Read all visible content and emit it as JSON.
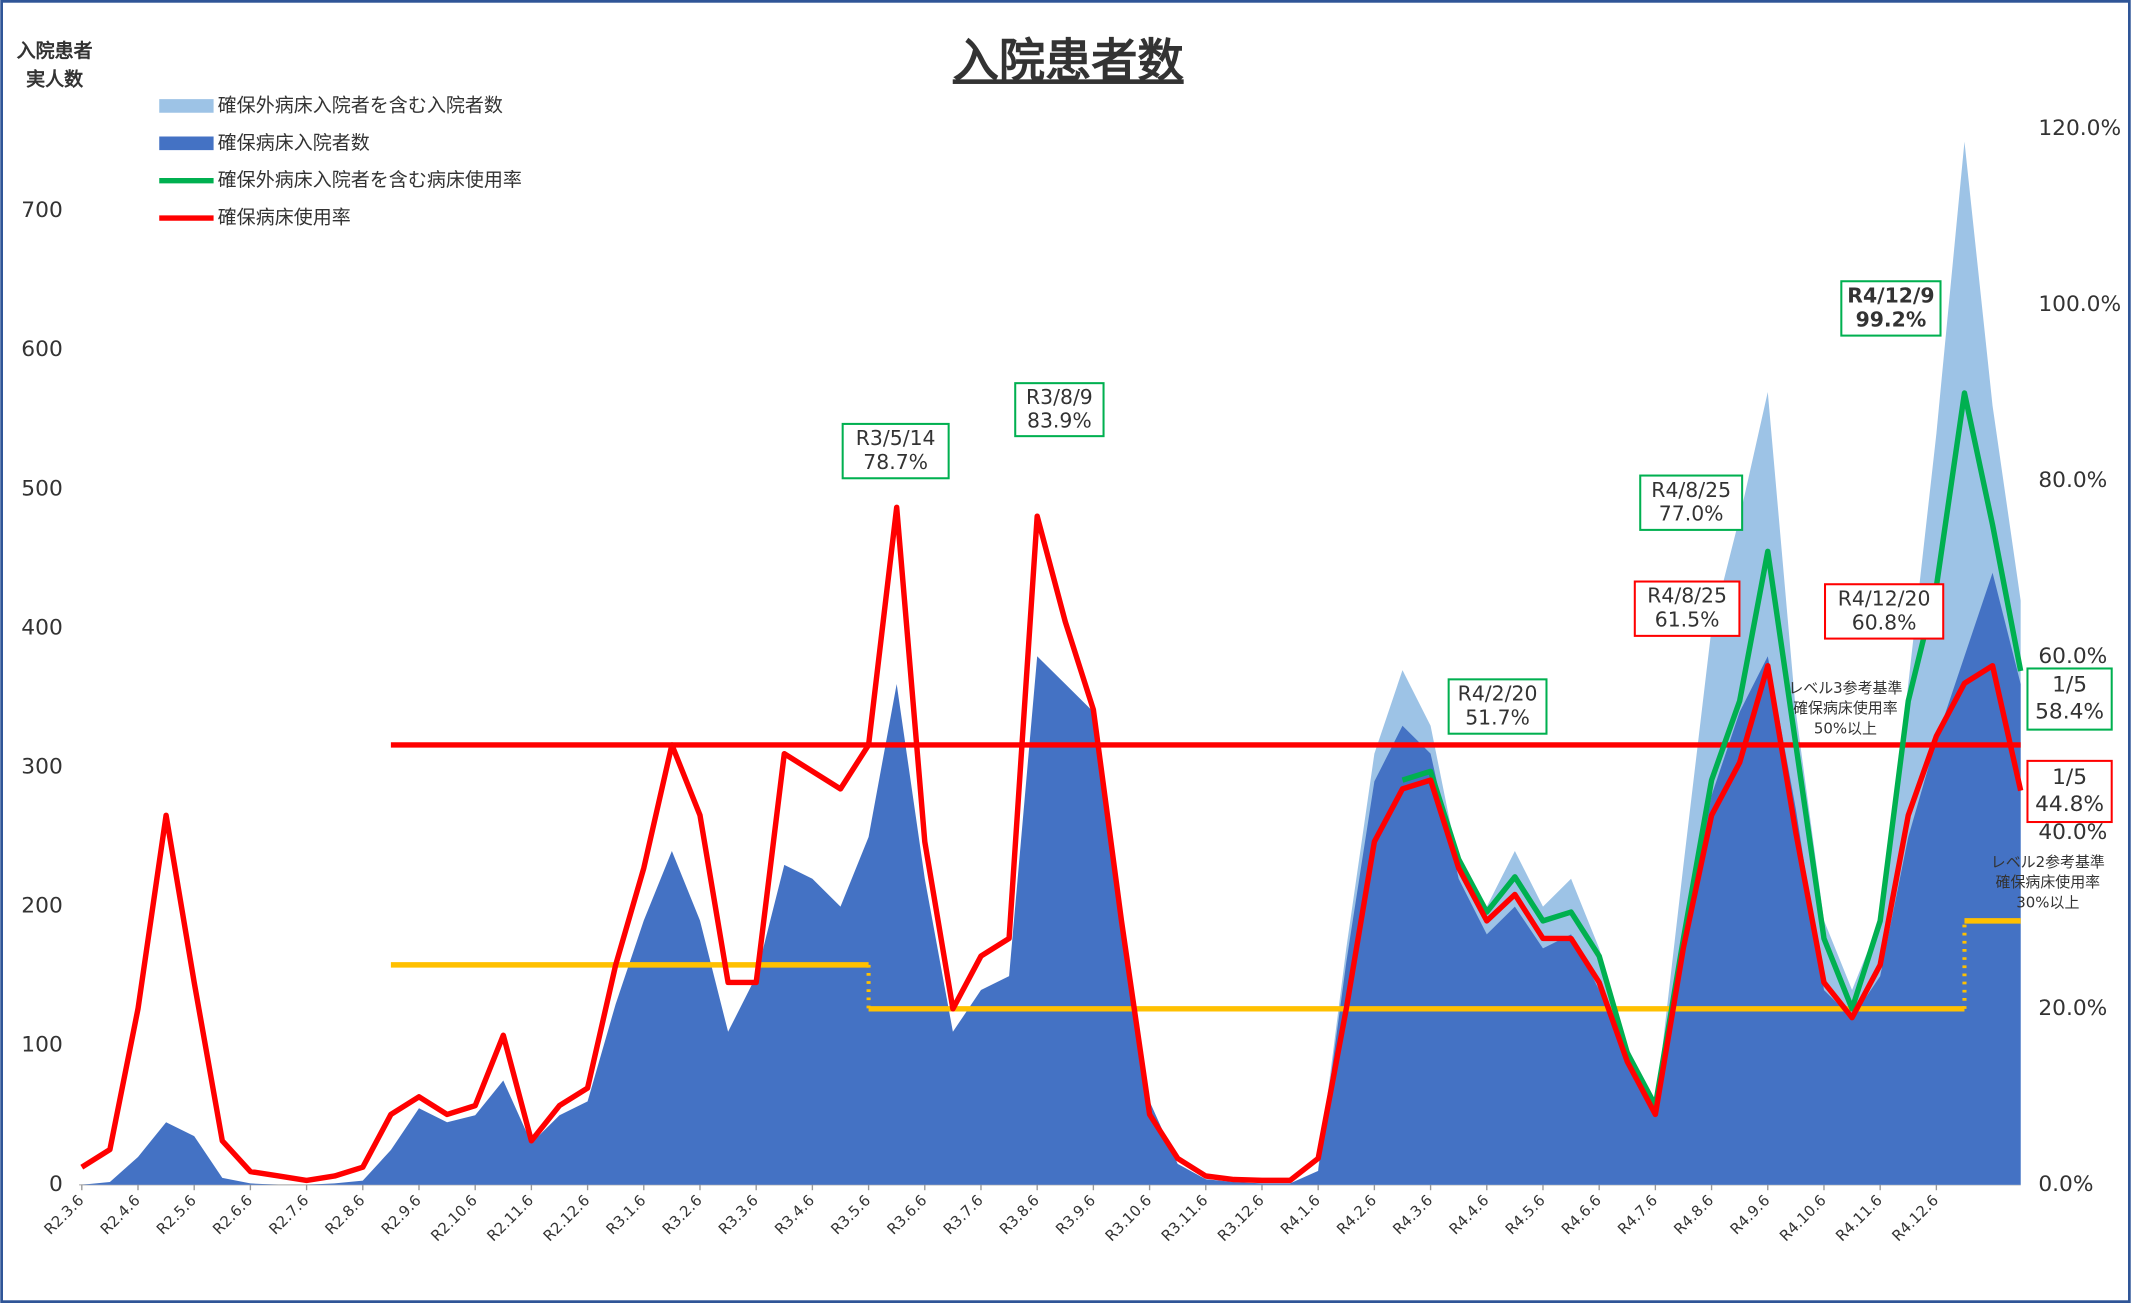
{
  "chart_data": {
    "type": "area-line",
    "title": "入院患者数",
    "y_axis_label": [
      "入院患者",
      "実人数"
    ],
    "categories": [
      "R2.3.6",
      null,
      "R2.4.6",
      null,
      "R2.5.6",
      null,
      "R2.6.6",
      null,
      "R2.7.6",
      null,
      "R2.8.6",
      null,
      "R2.9.6",
      null,
      "R2.10.6",
      null,
      "R2.11.6",
      null,
      "R2.12.6",
      null,
      "R3.1.6",
      null,
      "R3.2.6",
      null,
      "R3.3.6",
      null,
      "R3.4.6",
      null,
      "R3.5.6",
      null,
      "R3.6.6",
      null,
      "R3.7.6",
      null,
      "R3.8.6",
      null,
      "R3.9.6",
      null,
      "R3.10.6",
      null,
      "R3.11.6",
      null,
      "R3.12.6",
      null,
      "R4.1.6",
      null,
      "R4.2.6",
      null,
      "R4.3.6",
      null,
      "R4.4.6",
      null,
      "R4.5.6",
      null,
      "R4.6.6",
      null,
      "R4.7.6",
      null,
      "R4.8.6",
      null,
      "R4.9.6",
      null,
      "R4.10.6",
      null,
      "R4.11.6",
      null,
      "R4.12.6",
      null,
      null,
      null
    ],
    "ylim": [
      0,
      759
    ],
    "yticks": [
      0,
      100,
      200,
      300,
      400,
      500,
      600,
      700
    ],
    "y2lim": [
      0,
      120
    ],
    "y2ticks": [
      {
        "value": 0,
        "label": "0.0%"
      },
      {
        "value": 20,
        "label": "20.0%"
      },
      {
        "value": 40,
        "label": "40.0%"
      },
      {
        "value": 60,
        "label": "60.0%"
      },
      {
        "value": 80,
        "label": "80.0%"
      },
      {
        "value": 100,
        "label": "100.0%"
      },
      {
        "value": 120,
        "label": "120.0%"
      }
    ],
    "series": [
      {
        "name": "確保外病床入院者を含む入院者数",
        "kind": "area",
        "color": "#9dc3e6",
        "values": [
          null,
          null,
          null,
          null,
          null,
          null,
          null,
          null,
          null,
          null,
          null,
          null,
          null,
          null,
          null,
          null,
          null,
          null,
          null,
          null,
          null,
          null,
          null,
          null,
          null,
          null,
          null,
          null,
          null,
          null,
          null,
          null,
          null,
          null,
          null,
          null,
          null,
          null,
          null,
          null,
          null,
          null,
          null,
          null,
          12,
          170,
          310,
          370,
          330,
          230,
          200,
          240,
          200,
          220,
          170,
          100,
          55,
          230,
          400,
          480,
          570,
          340,
          190,
          140,
          190,
          360,
          540,
          750,
          560,
          420
        ]
      },
      {
        "name": "確保病床入院者数",
        "kind": "area",
        "color": "#4472c4",
        "values": [
          0,
          2,
          20,
          45,
          35,
          5,
          1,
          0,
          0,
          1,
          3,
          25,
          55,
          45,
          50,
          75,
          30,
          50,
          60,
          130,
          190,
          240,
          190,
          110,
          150,
          230,
          220,
          200,
          250,
          360,
          220,
          110,
          140,
          150,
          380,
          360,
          340,
          200,
          60,
          15,
          4,
          2,
          1,
          1,
          10,
          160,
          290,
          330,
          310,
          220,
          180,
          200,
          170,
          180,
          140,
          90,
          50,
          170,
          280,
          340,
          380,
          270,
          140,
          120,
          150,
          250,
          320,
          380,
          440,
          360
        ]
      },
      {
        "name": "確保外病床入院者を含む病床使用率",
        "kind": "line",
        "axis": "y2",
        "color": "#00b050",
        "values": [
          null,
          null,
          null,
          null,
          null,
          null,
          null,
          null,
          null,
          null,
          null,
          null,
          null,
          null,
          null,
          null,
          null,
          null,
          null,
          null,
          null,
          null,
          null,
          null,
          null,
          null,
          null,
          null,
          null,
          null,
          null,
          null,
          null,
          null,
          null,
          null,
          null,
          null,
          null,
          null,
          null,
          null,
          null,
          null,
          null,
          null,
          null,
          46,
          47,
          37,
          31,
          35,
          30,
          31,
          26,
          15,
          9,
          28,
          46,
          55,
          72,
          50,
          28,
          20,
          30,
          55,
          68,
          90,
          75,
          58.4
        ]
      },
      {
        "name": "確保病床使用率",
        "kind": "line",
        "axis": "y2",
        "color": "#ff0000",
        "values": [
          2,
          4,
          20,
          42,
          23,
          5,
          1.5,
          1,
          0.5,
          1,
          2,
          8,
          10,
          8,
          9,
          17,
          5,
          9,
          11,
          25,
          36,
          50,
          42,
          23,
          23,
          49,
          47,
          45,
          50,
          77,
          39,
          20,
          26,
          28,
          76,
          64,
          54,
          30,
          8,
          3,
          1,
          0.6,
          0.5,
          0.5,
          3,
          20,
          39,
          45,
          46,
          36,
          30,
          33,
          28,
          28,
          23,
          14,
          8,
          27,
          42,
          48,
          59,
          40,
          23,
          19,
          25,
          42,
          51,
          57,
          59,
          44.8
        ]
      }
    ],
    "reference_lines": [
      {
        "color": "#ff0000",
        "values": [
          null,
          null,
          null,
          null,
          null,
          null,
          null,
          null,
          null,
          null,
          null,
          50,
          50,
          50,
          50,
          50,
          50,
          50,
          50,
          50,
          50,
          50,
          50,
          50,
          50,
          50,
          50,
          50,
          50,
          50,
          50,
          50,
          50,
          50,
          50,
          50,
          50,
          50,
          50,
          50,
          50,
          50,
          50,
          50,
          50,
          50,
          50,
          50,
          50,
          50,
          50,
          50,
          50,
          50,
          50,
          50,
          50,
          50,
          50,
          50,
          50,
          50,
          50,
          50,
          50,
          50,
          50,
          50,
          50,
          50
        ]
      },
      {
        "color": "#ffc000",
        "values": [
          null,
          null,
          null,
          null,
          null,
          null,
          null,
          null,
          null,
          null,
          null,
          25,
          25,
          25,
          25,
          25,
          25,
          25,
          25,
          25,
          25,
          25,
          25,
          25,
          25,
          25,
          25,
          25,
          25,
          null,
          null,
          null,
          null,
          null,
          null,
          null,
          null,
          null,
          null,
          null,
          null,
          null,
          null,
          null,
          null,
          null,
          null,
          null,
          null,
          null,
          null,
          null,
          null,
          null,
          null,
          null,
          null,
          null,
          null,
          null,
          null,
          null,
          null,
          null,
          null,
          null,
          null,
          null,
          null,
          null
        ]
      },
      {
        "color": "#ffc000",
        "values": [
          null,
          null,
          null,
          null,
          null,
          null,
          null,
          null,
          null,
          null,
          null,
          null,
          null,
          null,
          null,
          null,
          null,
          null,
          null,
          null,
          null,
          null,
          null,
          null,
          null,
          null,
          null,
          null,
          20,
          20,
          20,
          20,
          20,
          20,
          20,
          20,
          20,
          20,
          20,
          20,
          20,
          20,
          20,
          20,
          20,
          20,
          20,
          20,
          20,
          20,
          20,
          20,
          20,
          20,
          20,
          20,
          20,
          20,
          20,
          20,
          20,
          20,
          20,
          20,
          20,
          20,
          20,
          20,
          null,
          null
        ]
      },
      {
        "color": "#ffc000",
        "values": [
          null,
          null,
          null,
          null,
          null,
          null,
          null,
          null,
          null,
          null,
          null,
          null,
          null,
          null,
          null,
          null,
          null,
          null,
          null,
          null,
          null,
          null,
          null,
          null,
          null,
          null,
          null,
          null,
          null,
          null,
          null,
          null,
          null,
          null,
          null,
          null,
          null,
          null,
          null,
          null,
          null,
          null,
          null,
          null,
          null,
          null,
          null,
          null,
          null,
          null,
          null,
          null,
          null,
          null,
          null,
          null,
          null,
          null,
          null,
          null,
          null,
          null,
          null,
          null,
          null,
          null,
          null,
          30,
          30,
          30
        ]
      }
    ],
    "reference_notes": [
      [
        "レベル3参考基準",
        "確保病床使用率",
        "50%以上"
      ],
      [
        "レベル2参考基準",
        "確保病床使用率",
        "30%以上"
      ]
    ],
    "annotations": [
      {
        "lines": [
          "R3/5/14",
          "78.7%"
        ],
        "color": "#00b050"
      },
      {
        "lines": [
          "R3/8/9",
          "83.9%"
        ],
        "color": "#00b050"
      },
      {
        "lines": [
          "R4/2/20",
          "51.7%"
        ],
        "color": "#00b050"
      },
      {
        "lines": [
          "R4/8/25",
          "77.0%"
        ],
        "color": "#00b050"
      },
      {
        "lines": [
          "R4/8/25",
          "61.5%"
        ],
        "color": "#ff0000"
      },
      {
        "lines": [
          "R4/12/9",
          "99.2%"
        ],
        "color": "#00b050"
      },
      {
        "lines": [
          "R4/12/20",
          "60.8%"
        ],
        "color": "#ff0000"
      },
      {
        "lines": [
          "1/5",
          "58.4%"
        ],
        "color": "#00b050"
      },
      {
        "lines": [
          "1/5",
          "44.8%"
        ],
        "color": "#ff0000"
      }
    ]
  }
}
